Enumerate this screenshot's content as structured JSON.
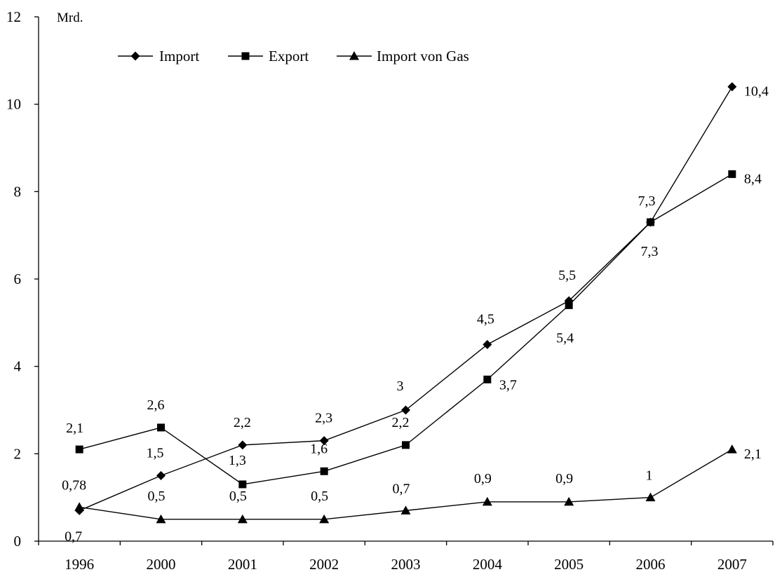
{
  "chart_data": {
    "type": "line",
    "unit_label": "Mrd.",
    "categories": [
      "1996",
      "2000",
      "2001",
      "2002",
      "2003",
      "2004",
      "2005",
      "2006",
      "2007"
    ],
    "ylim": [
      0,
      12
    ],
    "yticks": [
      0,
      2,
      4,
      6,
      8,
      10,
      12
    ],
    "grid": false,
    "legend_position": "top-left",
    "series": [
      {
        "name": "Import",
        "marker": "diamond",
        "values": [
          0.7,
          1.5,
          2.2,
          2.3,
          3,
          4.5,
          5.5,
          7.3,
          10.4
        ],
        "labels": [
          "0,7",
          "1,5",
          "2,2",
          "2,3",
          "3",
          "4,5",
          "5,5",
          "7,3",
          "10,4"
        ]
      },
      {
        "name": "Export",
        "marker": "square",
        "values": [
          2.1,
          2.6,
          1.3,
          1.6,
          2.2,
          3.7,
          5.4,
          7.3,
          8.4
        ],
        "labels": [
          "2,1",
          "2,6",
          "1,3",
          "1,6",
          "2,2",
          "3,7",
          "5,4",
          "7,3",
          "8,4"
        ]
      },
      {
        "name": "Import von Gas",
        "marker": "triangle",
        "values": [
          0.78,
          0.5,
          0.5,
          0.5,
          0.7,
          0.9,
          0.9,
          1,
          2.1
        ],
        "labels": [
          "0,78",
          "0,5",
          "0,5",
          "0,5",
          "0,7",
          "0,9",
          "0,9",
          "1",
          "2,1"
        ]
      }
    ]
  }
}
